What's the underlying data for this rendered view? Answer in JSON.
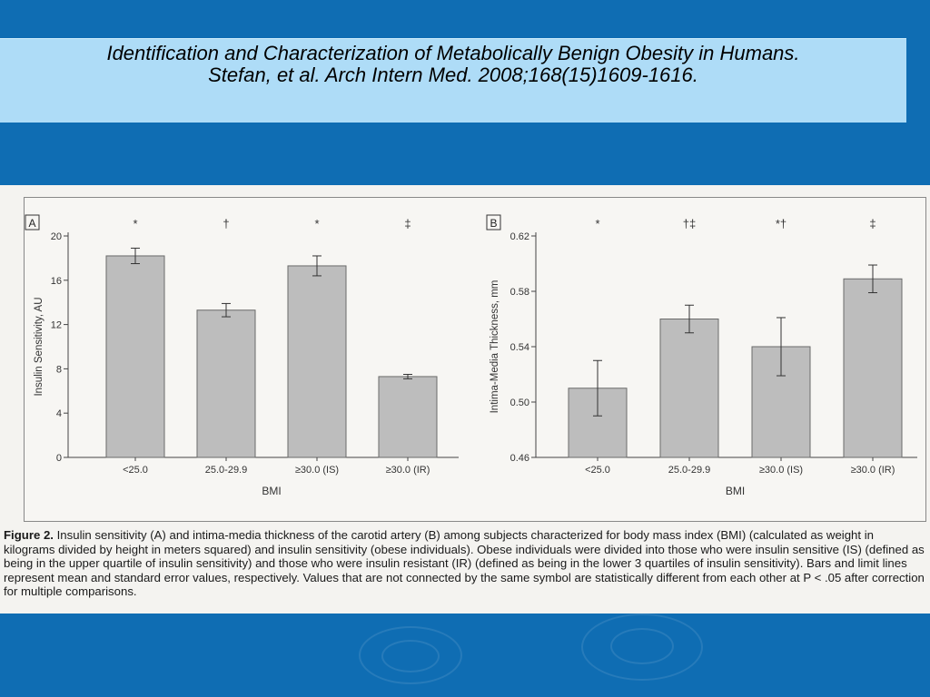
{
  "slide": {
    "title_line1": "Identification and Characterization of Metabolically Benign Obesity in Humans.",
    "title_line2": "Stefan, et al.  Arch Intern Med. 2008;168(15)1609-1616."
  },
  "colors": {
    "background": "#0f6db3",
    "title_band": "#aedcf7",
    "bar_fill": "#bdbdbd",
    "bar_stroke": "#6a6a6a"
  },
  "caption": {
    "label": "Figure 2.",
    "text": "Insulin sensitivity (A) and intima-media thickness of the carotid artery (B) among subjects characterized for body mass index (BMI) (calculated as weight in kilograms divided by height in meters squared) and insulin sensitivity (obese individuals). Obese individuals were divided into those who were insulin sensitive (IS) (defined as being in the upper quartile of insulin sensitivity) and those who were insulin resistant (IR) (defined as being in the lower 3 quartiles of insulin sensitivity). Bars and limit lines represent mean and standard error values, respectively. Values that are not connected by the same symbol are statistically different from each other at P < .05 after correction for multiple comparisons."
  },
  "chart_data": [
    {
      "type": "bar",
      "panel_label": "A",
      "title": "",
      "xlabel": "BMI",
      "ylabel": "Insulin Sensitivity, AU",
      "categories": [
        "<25.0",
        "25.0-29.9",
        "≥30.0 (IS)",
        "≥30.0 (IR)"
      ],
      "values": [
        18.2,
        13.3,
        17.3,
        7.3
      ],
      "errors": [
        0.7,
        0.6,
        0.9,
        0.2
      ],
      "symbols": [
        "*",
        "†",
        "*",
        "‡"
      ],
      "ylim": [
        0,
        20
      ],
      "yticks": [
        0,
        4,
        8,
        12,
        16,
        20
      ],
      "ytick_labels": [
        "0",
        "4",
        "8",
        "12",
        "16",
        "20"
      ],
      "grid": false
    },
    {
      "type": "bar",
      "panel_label": "B",
      "title": "",
      "xlabel": "BMI",
      "ylabel": "Intima-Media Thickness, mm",
      "categories": [
        "<25.0",
        "25.0-29.9",
        "≥30.0 (IS)",
        "≥30.0 (IR)"
      ],
      "values": [
        0.51,
        0.56,
        0.54,
        0.589
      ],
      "errors": [
        0.02,
        0.01,
        0.021,
        0.01
      ],
      "symbols": [
        "*",
        "†‡",
        "*†",
        "‡"
      ],
      "ylim": [
        0.46,
        0.62
      ],
      "yticks": [
        0.46,
        0.5,
        0.54,
        0.58,
        0.62
      ],
      "ytick_labels": [
        "0.46",
        "0.50",
        "0.54",
        "0.58",
        "0.62"
      ],
      "grid": false
    }
  ]
}
